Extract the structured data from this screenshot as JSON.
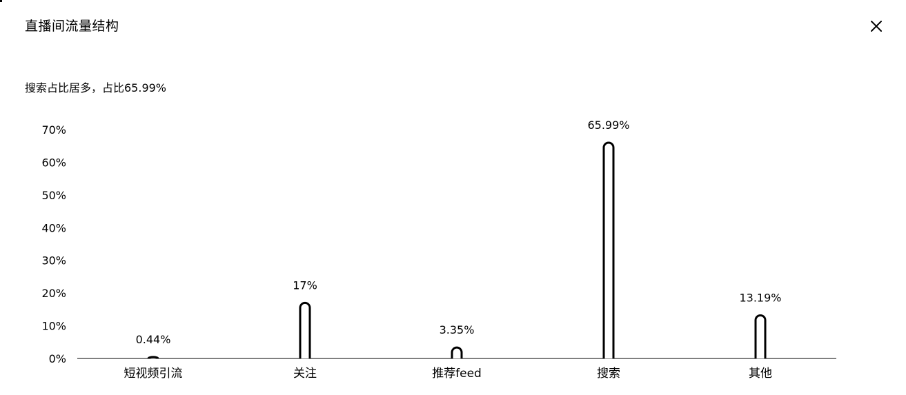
{
  "dialog": {
    "title": "直播间流量结构",
    "summary": "搜索占比居多，占比65.99%",
    "close_icon": "close-icon"
  },
  "chart_data": {
    "type": "bar",
    "categories": [
      "短视频引流",
      "关注",
      "推荐feed",
      "搜索",
      "其他"
    ],
    "values": [
      0.44,
      17,
      3.35,
      65.99,
      13.19
    ],
    "value_labels": [
      "0.44%",
      "17%",
      "3.35%",
      "65.99%",
      "13.19%"
    ],
    "y_ticks": [
      "0%",
      "10%",
      "20%",
      "30%",
      "40%",
      "50%",
      "60%",
      "70%"
    ],
    "ylim": [
      0,
      70
    ],
    "grid": false,
    "legend": "none"
  }
}
